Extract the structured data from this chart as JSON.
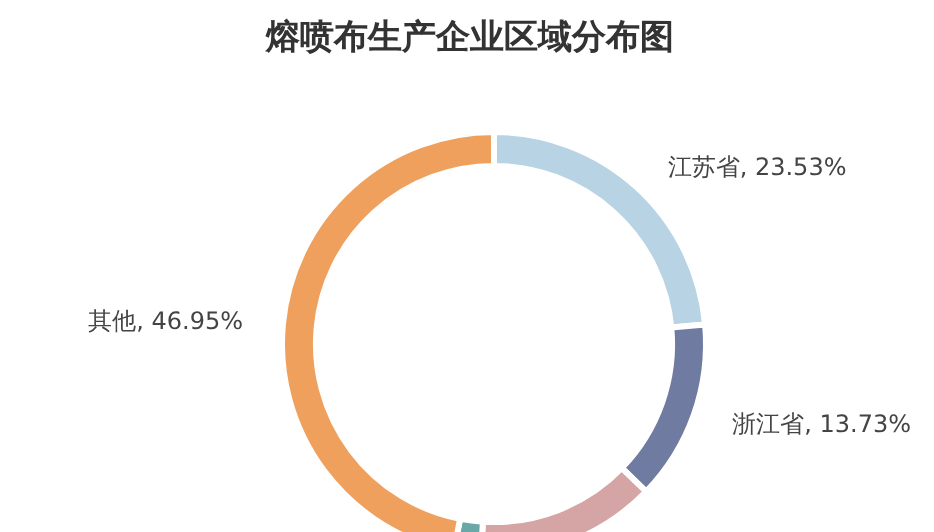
{
  "chart_data": {
    "type": "donut",
    "title": "熔喷布生产企业区域分布图",
    "categories": [
      "江苏省",
      "浙江省",
      null,
      null,
      "其他"
    ],
    "values": [
      23.53,
      13.73,
      13.73,
      2.06,
      46.95
    ],
    "value_labels": [
      ", 23.53%",
      ", 13.73%",
      null,
      null,
      ", 46.95%"
    ],
    "colors": [
      "#b7d3e4",
      "#6f7ba0",
      "#d5a5a6",
      "#6aa8a8",
      "#f0a05d"
    ]
  }
}
